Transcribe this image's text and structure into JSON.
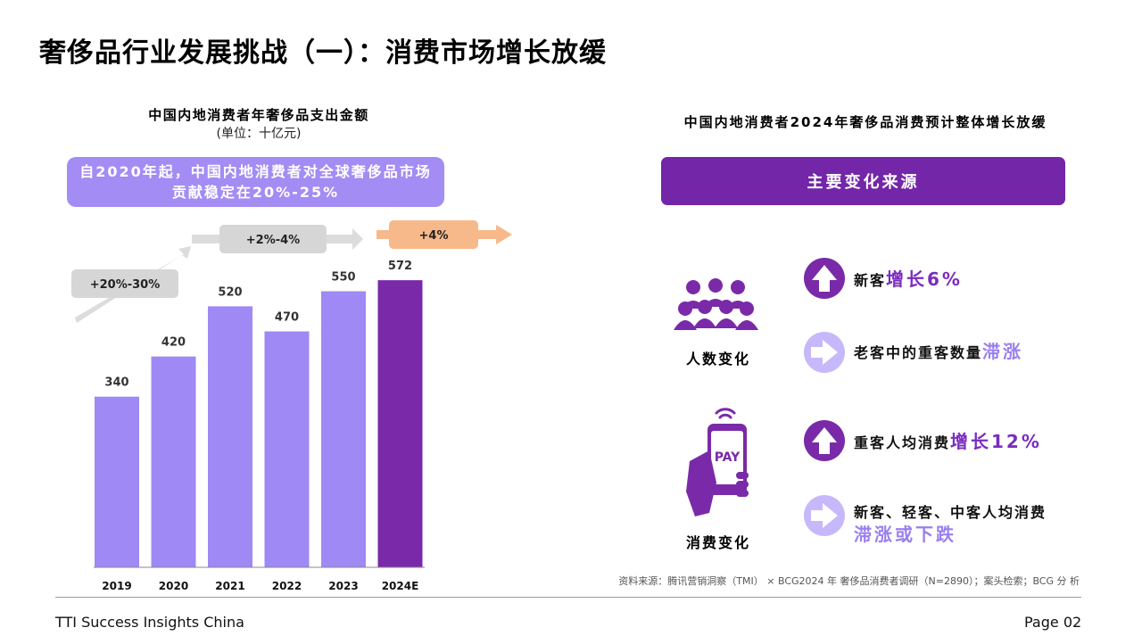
{
  "page": {
    "title": "奢侈品行业发展挑战（一）：消费市场增长放缓"
  },
  "left_panel": {
    "callout": "自2020年起，中国内地消费者对全球奢侈品市场贡献稳定在20%-25%",
    "trend_labels": [
      "+20%-30%",
      "+2%-4%",
      "+4%"
    ]
  },
  "chart_data": {
    "type": "bar",
    "title": "中国内地消费者年奢侈品支出金额",
    "subtitle": "(单位：十亿元)",
    "categories": [
      "2019",
      "2020",
      "2021",
      "2022",
      "2023",
      "2024E"
    ],
    "values": [
      340,
      420,
      520,
      470,
      550,
      572
    ],
    "ylim": [
      0,
      600
    ],
    "grid": false,
    "colors": {
      "actual": "#9e89f5",
      "forecast": "#7a2aa8"
    }
  },
  "right_panel": {
    "title": "中国内地消费者2024年奢侈品消费预计整体增长放缓",
    "banner": "主要变化来源",
    "groups": [
      {
        "label": "人数变化",
        "icon": "people-group-icon",
        "items": [
          {
            "icon": "arrow-up-icon",
            "text": "新客",
            "highlight": "增长6%"
          },
          {
            "icon": "arrow-right-icon",
            "text": "老客中的重客数量",
            "highlight": "滞涨"
          }
        ]
      },
      {
        "label": "消费变化",
        "icon": "pay-phone-icon",
        "pay_text": "PAY",
        "items": [
          {
            "icon": "arrow-up-icon",
            "text": "重客人均消费",
            "highlight": "增长12%"
          },
          {
            "icon": "arrow-right-icon",
            "text": "新客、轻客、中客人均消费",
            "highlight": "滞涨或下跌"
          }
        ]
      }
    ],
    "source": "资料来源：腾讯营销洞察（TMI） × BCG2024 年 奢侈品消费者调研（N=2890）；案头检索；BCG 分 析"
  },
  "footer": {
    "left": "TTI Success Insights China",
    "right": "Page 02"
  },
  "colors": {
    "purple_dark": "#7326a8",
    "purple_light": "#a38cf4",
    "orange": "#f7b98a",
    "gray": "#d6d6d6"
  }
}
